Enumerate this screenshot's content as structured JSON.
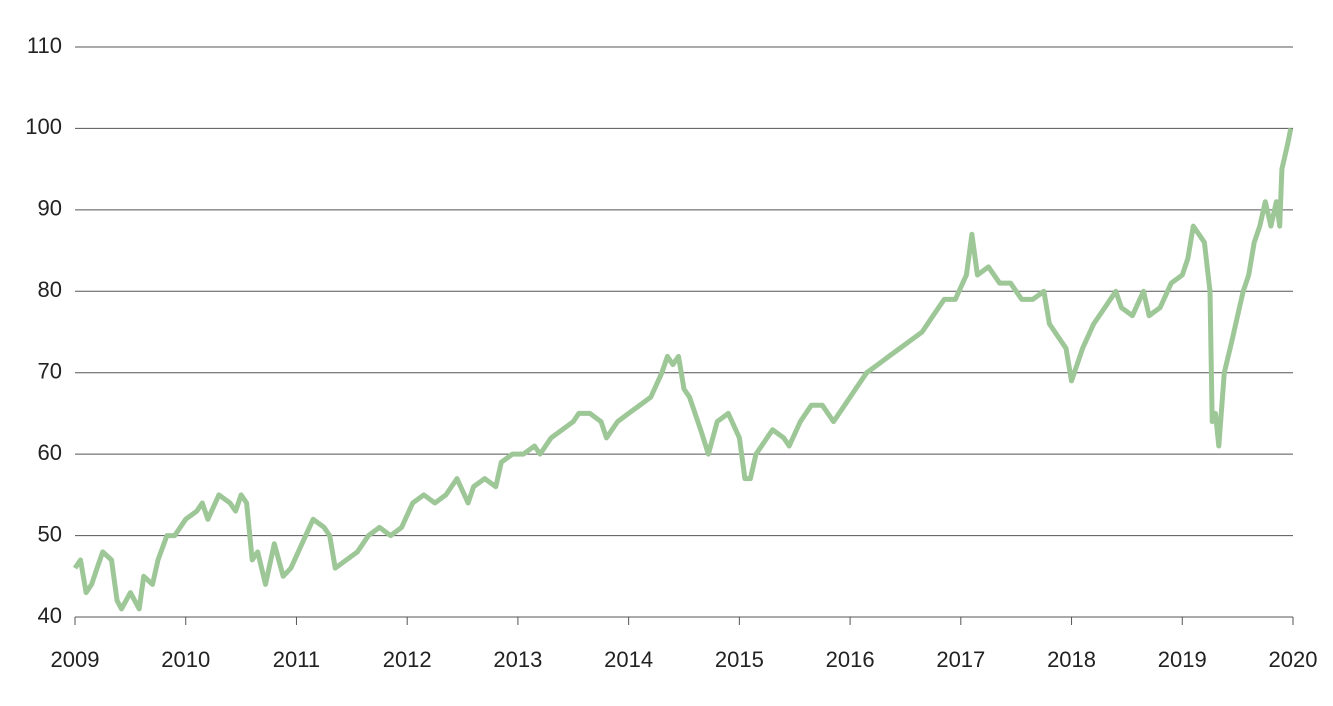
{
  "chart_data": {
    "type": "line",
    "x": [
      2009.0,
      2009.05,
      2009.1,
      2009.15,
      2009.2,
      2009.25,
      2009.33,
      2009.38,
      2009.42,
      2009.5,
      2009.58,
      2009.62,
      2009.7,
      2009.75,
      2009.83,
      2009.9,
      2009.95,
      2010.0,
      2010.1,
      2010.15,
      2010.2,
      2010.3,
      2010.4,
      2010.45,
      2010.5,
      2010.55,
      2010.6,
      2010.65,
      2010.72,
      2010.8,
      2010.88,
      2010.95,
      2011.05,
      2011.15,
      2011.25,
      2011.3,
      2011.35,
      2011.45,
      2011.55,
      2011.65,
      2011.75,
      2011.85,
      2011.95,
      2012.05,
      2012.15,
      2012.25,
      2012.35,
      2012.45,
      2012.55,
      2012.6,
      2012.7,
      2012.8,
      2012.85,
      2012.95,
      2013.05,
      2013.15,
      2013.2,
      2013.3,
      2013.4,
      2013.5,
      2013.55,
      2013.65,
      2013.75,
      2013.8,
      2013.9,
      2014.0,
      2014.1,
      2014.2,
      2014.3,
      2014.35,
      2014.4,
      2014.45,
      2014.5,
      2014.55,
      2014.65,
      2014.72,
      2014.8,
      2014.9,
      2015.0,
      2015.05,
      2015.1,
      2015.15,
      2015.25,
      2015.3,
      2015.4,
      2015.45,
      2015.55,
      2015.65,
      2015.75,
      2015.85,
      2015.95,
      2016.05,
      2016.15,
      2016.25,
      2016.35,
      2016.45,
      2016.55,
      2016.65,
      2016.75,
      2016.85,
      2016.95,
      2017.05,
      2017.1,
      2017.15,
      2017.25,
      2017.35,
      2017.45,
      2017.55,
      2017.65,
      2017.75,
      2017.8,
      2017.85,
      2017.95,
      2018.0,
      2018.05,
      2018.1,
      2018.2,
      2018.3,
      2018.4,
      2018.45,
      2018.55,
      2018.65,
      2018.7,
      2018.8,
      2018.9,
      2019.0,
      2019.05,
      2019.1,
      2019.15,
      2019.2,
      2019.25,
      2019.27,
      2019.3,
      2019.33,
      2019.38,
      2019.45,
      2019.5,
      2019.55,
      2019.6,
      2019.65,
      2019.7,
      2019.75,
      2019.8,
      2019.85,
      2019.88,
      2019.9,
      2019.95,
      2019.98
    ],
    "series": [
      {
        "color": "#9ec798",
        "values": [
          46,
          47,
          43,
          44,
          46,
          48,
          47,
          42,
          41,
          43,
          41,
          45,
          44,
          47,
          50,
          50,
          51,
          52,
          53,
          54,
          52,
          55,
          54,
          53,
          55,
          54,
          47,
          48,
          44,
          49,
          45,
          46,
          49,
          52,
          51,
          50,
          46,
          47,
          48,
          50,
          51,
          50,
          51,
          54,
          55,
          54,
          55,
          57,
          54,
          56,
          57,
          56,
          59,
          60,
          60,
          61,
          60,
          62,
          63,
          64,
          65,
          65,
          64,
          62,
          64,
          65,
          66,
          67,
          70,
          72,
          71,
          72,
          68,
          67,
          63,
          60,
          64,
          65,
          62,
          57,
          57,
          60,
          62,
          63,
          62,
          61,
          64,
          66,
          66,
          64,
          66,
          68,
          70,
          71,
          72,
          73,
          74,
          75,
          77,
          79,
          79,
          82,
          87,
          82,
          83,
          81,
          81,
          79,
          79,
          80,
          76,
          75,
          73,
          69,
          71,
          73,
          76,
          78,
          80,
          78,
          77,
          80,
          77,
          78,
          81,
          82,
          84,
          88,
          87,
          86,
          80,
          64,
          65,
          61,
          70,
          74,
          77,
          80,
          82,
          86,
          88,
          91,
          88,
          91,
          88,
          95,
          98,
          100
        ]
      }
    ],
    "xlim": [
      2009,
      2020
    ],
    "xticks": [
      2009,
      2010,
      2011,
      2012,
      2013,
      2014,
      2015,
      2016,
      2017,
      2018,
      2019,
      2020
    ],
    "ylim": [
      40,
      110
    ],
    "yticks": [
      40,
      50,
      60,
      70,
      80,
      90,
      100,
      110
    ],
    "grid": true
  }
}
